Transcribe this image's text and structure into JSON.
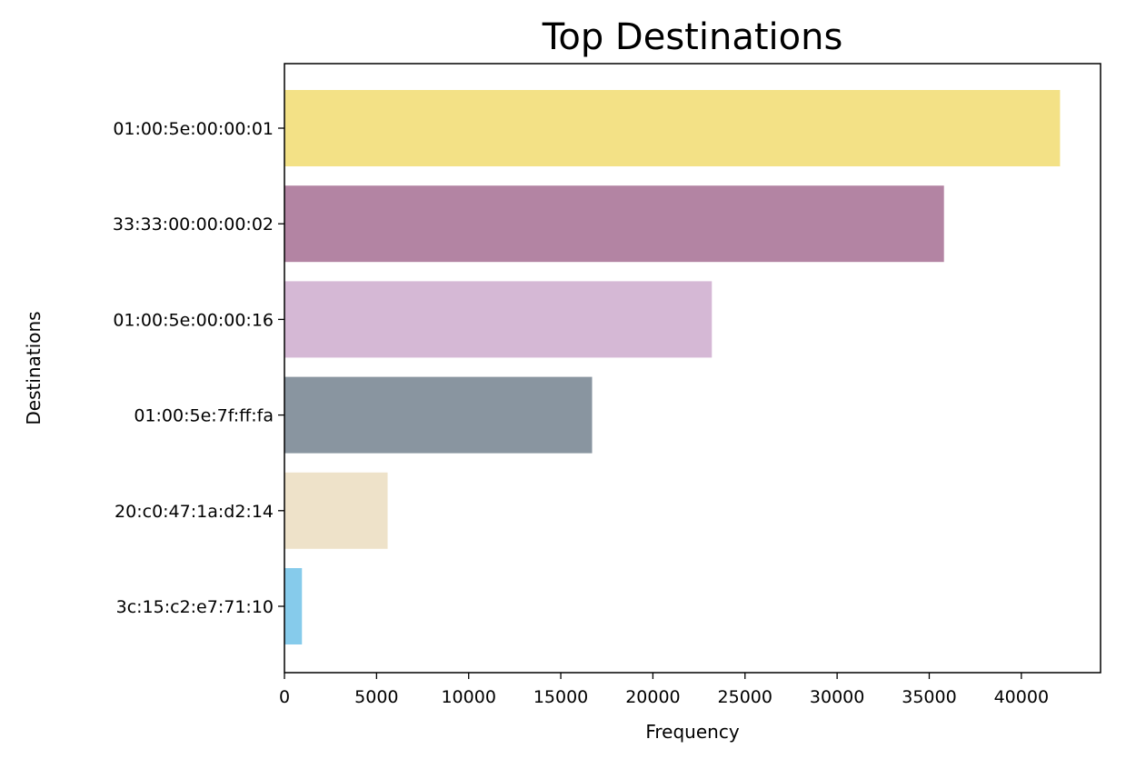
{
  "chart_data": {
    "type": "bar",
    "orientation": "horizontal",
    "title": "Top Destinations",
    "xlabel": "Frequency",
    "ylabel": "Destinations",
    "xlim": [
      0,
      44300
    ],
    "xticks": [
      0,
      5000,
      10000,
      15000,
      20000,
      25000,
      30000,
      35000,
      40000
    ],
    "grid": false,
    "categories": [
      "01:00:5e:00:00:01",
      "33:33:00:00:00:02",
      "01:00:5e:00:00:16",
      "01:00:5e:7f:ff:fa",
      "20:c0:47:1a:d2:14",
      "3c:15:c2:e7:71:10"
    ],
    "values": [
      42100,
      35800,
      23200,
      16700,
      5600,
      950
    ],
    "colors": [
      "#f3e186",
      "#b384a3",
      "#d5b8d5",
      "#8995a0",
      "#eee2c9",
      "#86cbeb"
    ]
  }
}
